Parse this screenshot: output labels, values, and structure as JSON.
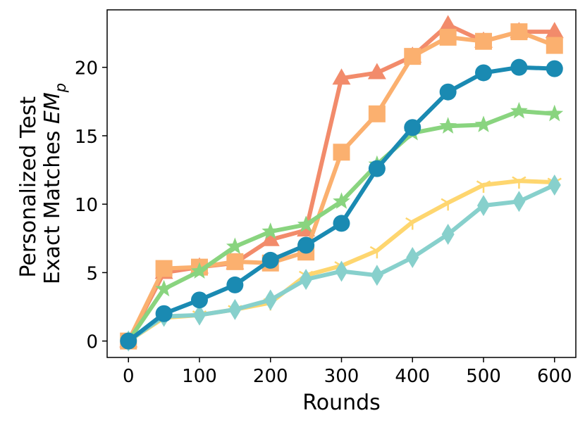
{
  "chart_data": {
    "type": "line",
    "xlabel": "Rounds",
    "ylabel_line1": "Personalized Test",
    "ylabel_line2": "Exact Matches",
    "ylabel_symbol": "EM",
    "ylabel_subscript": "p",
    "xlim": [
      -30,
      630
    ],
    "ylim": [
      -1.2,
      24.2
    ],
    "xticks": [
      0,
      100,
      200,
      300,
      400,
      500,
      600
    ],
    "yticks": [
      0,
      5,
      10,
      15,
      20
    ],
    "x": [
      0,
      50,
      100,
      150,
      200,
      250,
      300,
      350,
      400,
      450,
      500,
      550,
      600
    ],
    "series": [
      {
        "color": "#f28b6b",
        "marker": "triangle",
        "values": [
          0,
          5.0,
          5.4,
          5.7,
          7.4,
          8.1,
          19.2,
          19.6,
          20.8,
          23.1,
          21.9,
          22.6,
          22.6
        ]
      },
      {
        "color": "#fbb06f",
        "marker": "square",
        "values": [
          0,
          5.3,
          5.4,
          5.8,
          5.7,
          6.5,
          13.8,
          16.6,
          20.8,
          22.2,
          21.9,
          22.6,
          21.6
        ]
      },
      {
        "color": "#fed66f",
        "marker": "tri_down",
        "values": [
          0,
          1.7,
          1.9,
          2.3,
          2.8,
          4.8,
          5.5,
          6.6,
          8.7,
          10.1,
          11.4,
          11.7,
          11.6
        ]
      },
      {
        "color": "#87d0cc",
        "marker": "thin_diamond",
        "values": [
          0,
          1.8,
          1.9,
          2.3,
          3.0,
          4.5,
          5.1,
          4.8,
          6.1,
          7.8,
          9.9,
          10.2,
          11.4
        ]
      },
      {
        "color": "#89d47f",
        "marker": "star",
        "values": [
          0,
          3.8,
          5.1,
          6.9,
          8.0,
          8.5,
          10.2,
          12.9,
          15.2,
          15.7,
          15.8,
          16.8,
          16.6
        ]
      },
      {
        "color": "#1a8ab2",
        "marker": "circle",
        "values": [
          0,
          2.0,
          3.0,
          4.1,
          5.9,
          7.0,
          8.6,
          12.6,
          15.6,
          18.2,
          19.6,
          20.0,
          19.9
        ]
      }
    ]
  }
}
